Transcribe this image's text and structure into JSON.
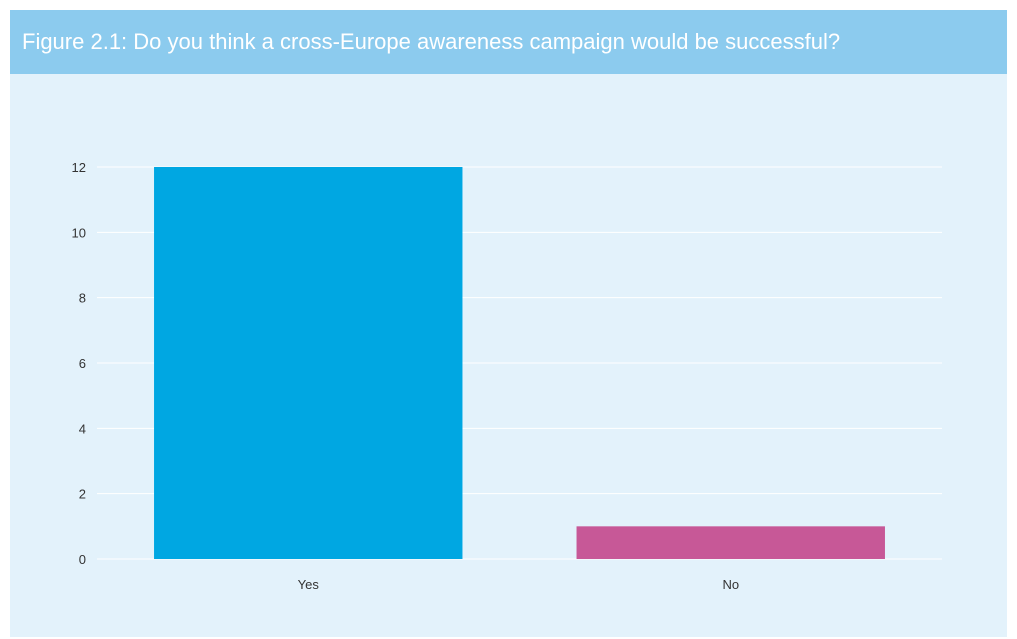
{
  "figure": {
    "title": "Figure 2.1: Do you think a cross-Europe awareness campaign would be successful?"
  },
  "chart_data": {
    "type": "bar",
    "title": "Figure 2.1: Do you think a cross-Europe awareness campaign would be successful?",
    "categories": [
      "Yes",
      "No"
    ],
    "values": [
      12,
      1
    ],
    "colors": [
      "#00a7e2",
      "#c75897"
    ],
    "ylim": [
      0,
      12
    ],
    "yticks": [
      0,
      2,
      4,
      6,
      8,
      10,
      12
    ],
    "xlabel": "",
    "ylabel": "",
    "grid": true,
    "legend": "none"
  }
}
